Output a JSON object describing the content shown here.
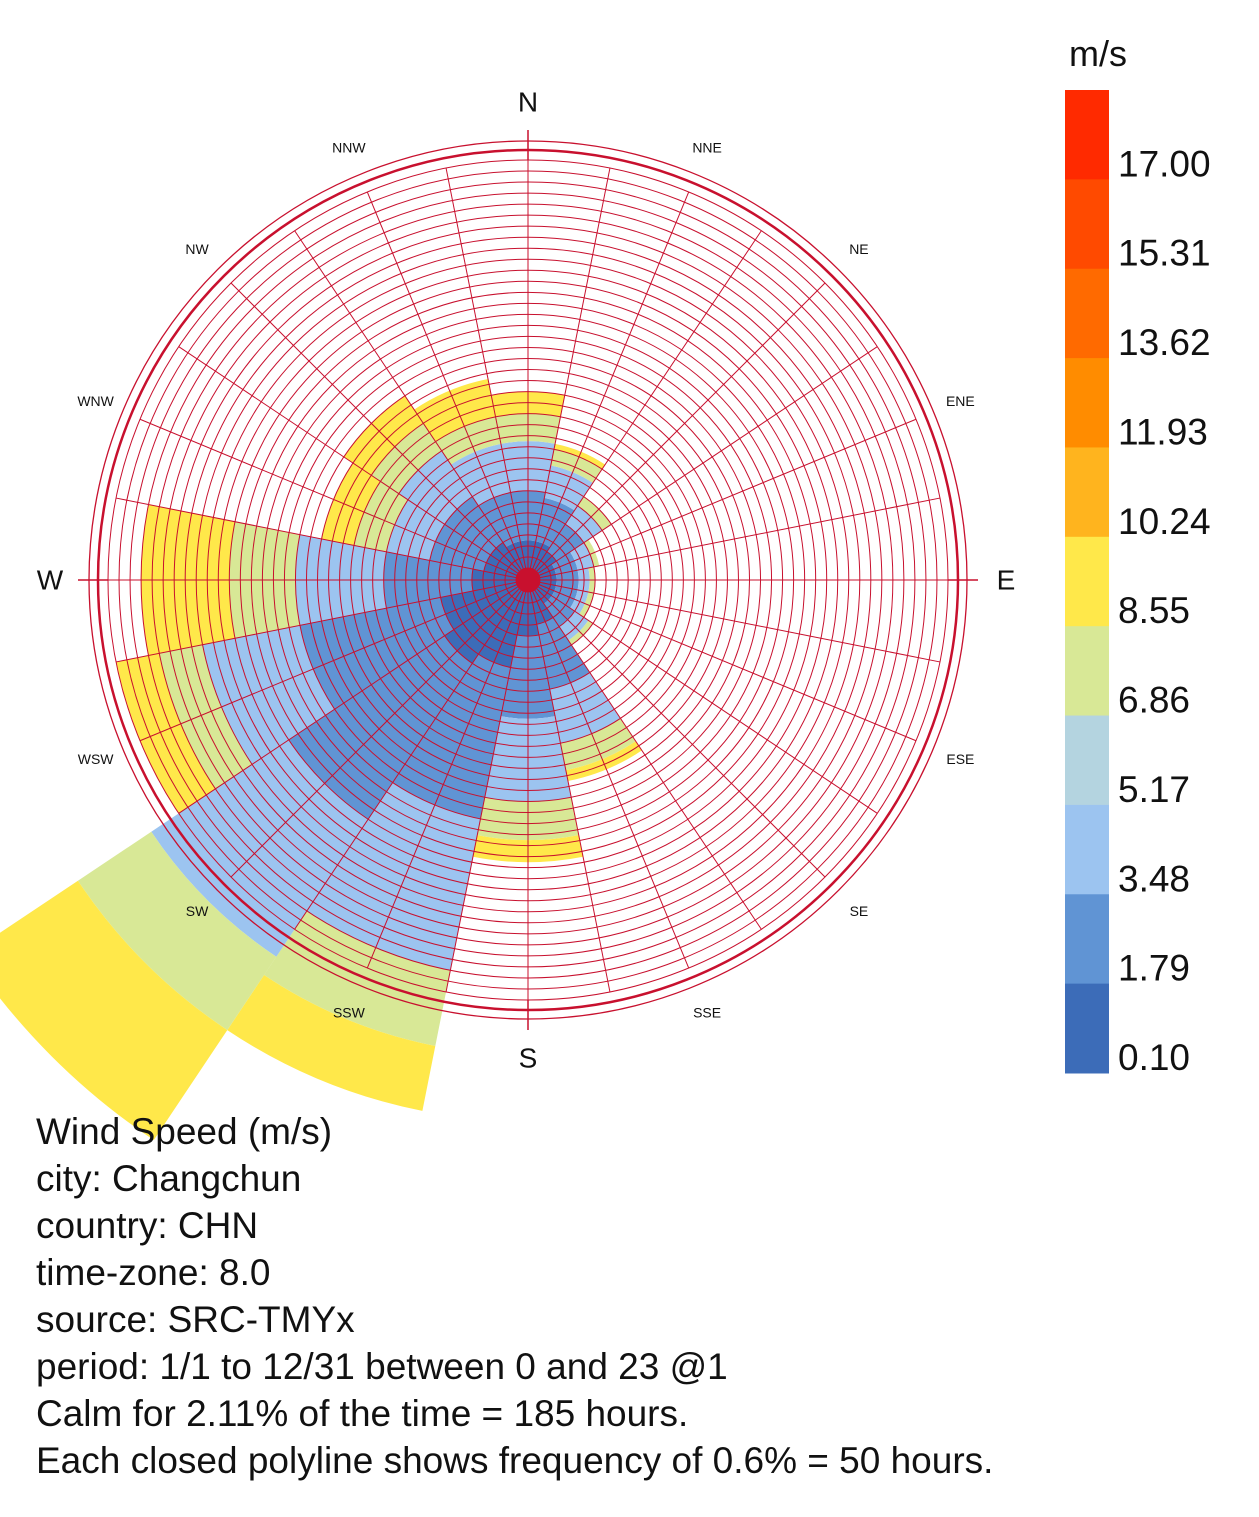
{
  "chart_data": {
    "type": "wind-rose",
    "units": "m/s",
    "directions": [
      "N",
      "NNE",
      "NE",
      "ENE",
      "E",
      "ESE",
      "SE",
      "SSE",
      "S",
      "SSW",
      "SW",
      "WSW",
      "W",
      "WNW",
      "NW",
      "NNW"
    ],
    "legend": {
      "title": "m/s",
      "placement": "right",
      "tick_labels": [
        "17.00",
        "15.31",
        "13.62",
        "11.93",
        "10.24",
        "8.55",
        "6.86",
        "5.17",
        "3.48",
        "1.79",
        "0.10"
      ],
      "colors": [
        "#ff2a00",
        "#ff4a00",
        "#ff6a00",
        "#ff8c00",
        "#ffb41e",
        "#ffe84a",
        "#d8e896",
        "#b4d4e0",
        "#9cc4f0",
        "#6094d4",
        "#3c6cb8"
      ]
    },
    "freq_step_percent": 0.6,
    "rings_per_polyline": 3,
    "bins_percent": {
      "N": [
        0.5,
        0.9,
        0.9,
        0.5,
        0.4
      ],
      "NNE": [
        0.5,
        0.8,
        0.6,
        0.3,
        0.1
      ],
      "NE": [
        0.4,
        0.6,
        0.4,
        0.2,
        0.0
      ],
      "ENE": [
        0.3,
        0.4,
        0.3,
        0.1,
        0.0
      ],
      "E": [
        0.3,
        0.4,
        0.2,
        0.1,
        0.0
      ],
      "ESE": [
        0.3,
        0.4,
        0.2,
        0.1,
        0.0
      ],
      "SE": [
        0.3,
        0.5,
        0.3,
        0.1,
        0.0
      ],
      "SSE": [
        0.6,
        1.2,
        1.0,
        0.5,
        0.2
      ],
      "S": [
        0.8,
        1.5,
        1.5,
        0.7,
        0.4
      ],
      "SSW": [
        1.4,
        2.8,
        2.8,
        1.4,
        1.2
      ],
      "SW": [
        1.6,
        3.4,
        3.0,
        1.6,
        2.4
      ],
      "WSW": [
        1.4,
        2.6,
        1.8,
        0.8,
        0.8
      ],
      "W": [
        0.8,
        1.6,
        1.6,
        1.2,
        1.6
      ],
      "WNW": [
        0.6,
        1.0,
        0.8,
        0.6,
        0.6
      ],
      "NW": [
        0.6,
        1.0,
        1.0,
        0.6,
        0.6
      ],
      "NNW": [
        0.5,
        0.9,
        0.9,
        0.5,
        0.7
      ]
    },
    "bin_colors": [
      "#3c6cb8",
      "#6094d4",
      "#9cc4f0",
      "#d8e896",
      "#ffe84a"
    ]
  },
  "info": {
    "title": "Wind Speed (m/s)",
    "city": "city: Changchun",
    "country": "country: CHN",
    "timezone": "time-zone: 8.0",
    "source": "source: SRC-TMYx",
    "period": "period: 1/1 to 12/31 between 0 and 23 @1",
    "calm": "Calm for 2.11% of the time = 185 hours.",
    "polyline": "Each closed polyline shows frequency of 0.6% = 50 hours."
  }
}
